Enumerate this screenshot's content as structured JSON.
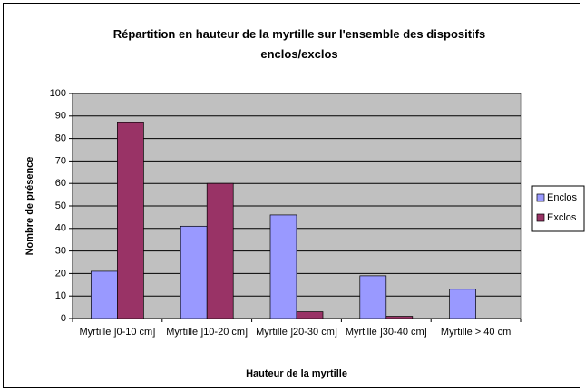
{
  "chart_data": {
    "type": "bar",
    "title": "Répartition en hauteur de la myrtille sur l'ensemble des dispositifs enclos/exclos",
    "x_label": "Hauteur de la myrtille",
    "y_label": "Nombre de présence",
    "categories": [
      "Myrtille ]0-10 cm]",
      "Myrtille ]10-20 cm]",
      "Myrtille ]20-30 cm]",
      "Myrtille ]30-40 cm]",
      "Myrtille > 40 cm"
    ],
    "series": [
      {
        "name": "Enclos",
        "color": "#9999ff",
        "values": [
          21,
          41,
          46,
          19,
          13
        ]
      },
      {
        "name": "Exclos",
        "color": "#993366",
        "values": [
          87,
          60,
          3,
          1,
          0
        ]
      }
    ],
    "ylim": [
      0,
      100
    ],
    "yticks": [
      0,
      10,
      20,
      30,
      40,
      50,
      60,
      70,
      80,
      90,
      100
    ],
    "grid": true,
    "legend": "right"
  }
}
